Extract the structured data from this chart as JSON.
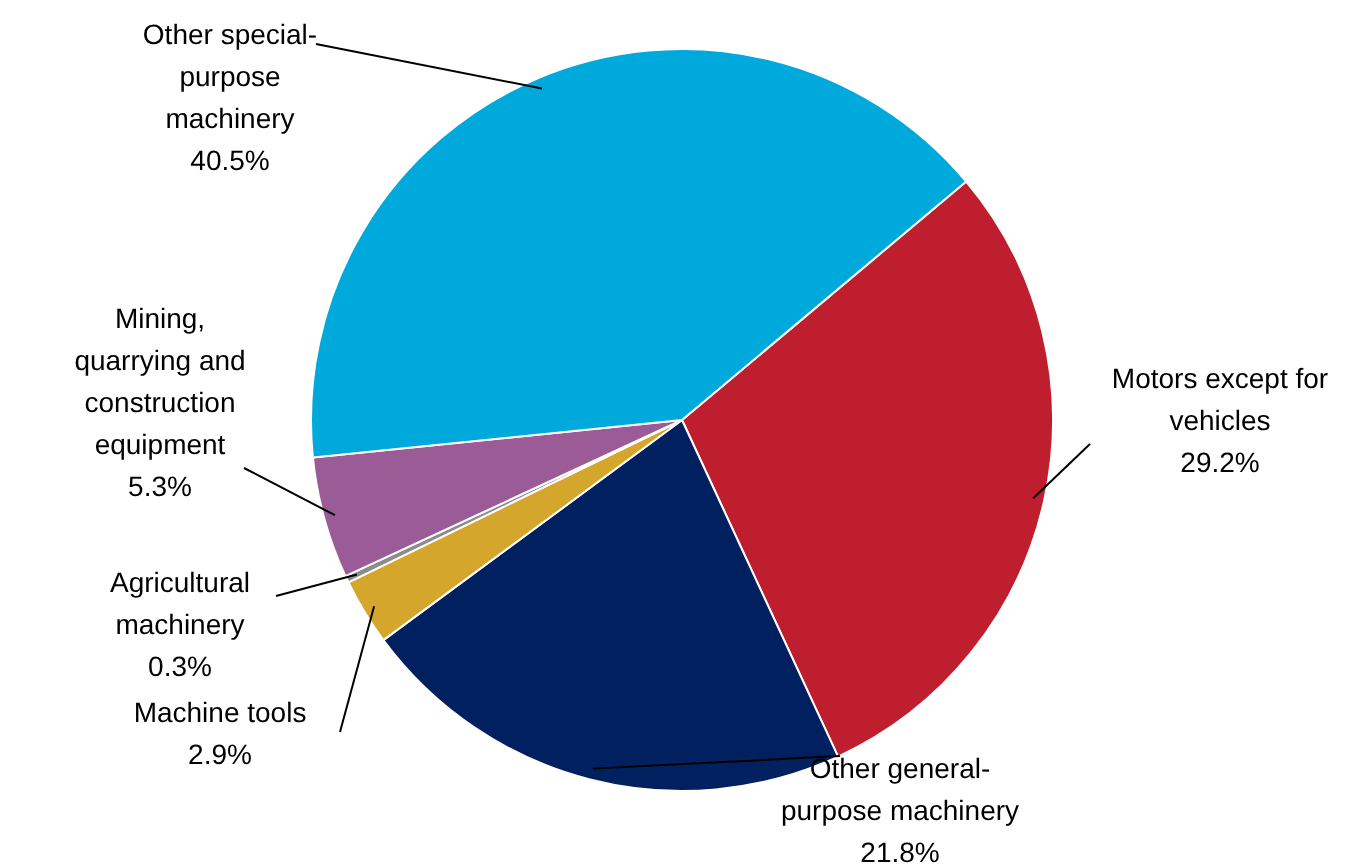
{
  "chart_data": {
    "type": "pie",
    "categories": [
      "Motors except for vehicles",
      "Other general-purpose machinery",
      "Machine tools",
      "Agricultural machinery",
      "Mining, quarrying and construction equipment",
      "Other special-purpose machinery"
    ],
    "values": [
      29.2,
      21.8,
      2.9,
      0.3,
      5.3,
      40.5
    ],
    "value_labels": [
      "29.2%",
      "21.8%",
      "2.9%",
      "0.3%",
      "5.3%",
      "40.5%"
    ],
    "colors": [
      "#be1e2d",
      "#002060",
      "#d4a72c",
      "#8c8c8c",
      "#9b5b96",
      "#00a9dc"
    ],
    "legend": false
  }
}
